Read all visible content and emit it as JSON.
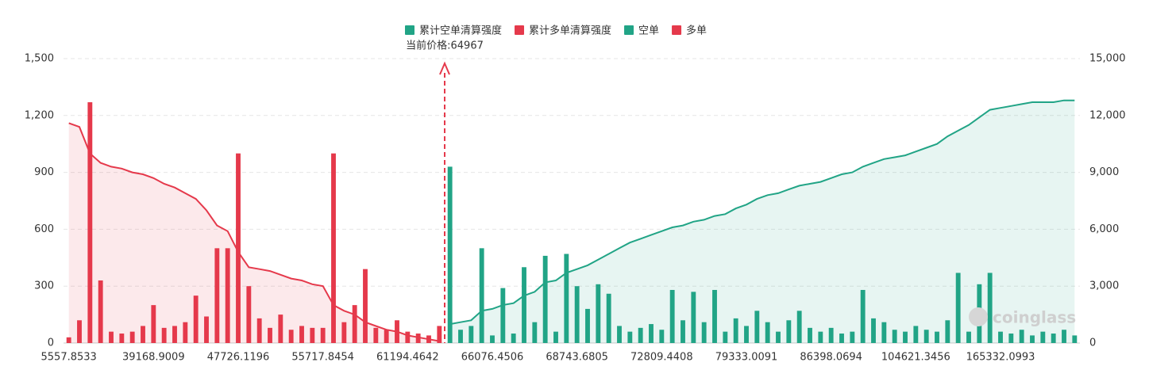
{
  "chart_data": {
    "type": "liquidation-map",
    "categories": [
      "5557.8533",
      null,
      null,
      null,
      null,
      null,
      null,
      null,
      "39168.9009",
      null,
      null,
      null,
      null,
      null,
      null,
      null,
      "47726.1196",
      null,
      null,
      null,
      null,
      null,
      null,
      null,
      "55717.8454",
      null,
      null,
      null,
      null,
      null,
      null,
      null,
      "61194.4642",
      null,
      null,
      null,
      null,
      null,
      null,
      null,
      "66076.4506",
      null,
      null,
      null,
      null,
      null,
      null,
      null,
      "68743.6805",
      null,
      null,
      null,
      null,
      null,
      null,
      null,
      "72809.4408",
      null,
      null,
      null,
      null,
      null,
      null,
      null,
      "79333.0091",
      null,
      null,
      null,
      null,
      null,
      null,
      null,
      "86398.0694",
      null,
      null,
      null,
      null,
      null,
      null,
      null,
      "104621.3456",
      null,
      null,
      null,
      null,
      null,
      null,
      null,
      "165332.0993",
      null,
      null,
      null,
      null,
      null,
      null,
      null
    ],
    "series": [
      {
        "name": "累计空单清算强度",
        "kind": "area",
        "axis": "y2",
        "color": "#21a486",
        "values": [
          null,
          null,
          null,
          null,
          null,
          null,
          null,
          null,
          null,
          null,
          null,
          null,
          null,
          null,
          null,
          null,
          null,
          null,
          null,
          null,
          null,
          null,
          null,
          null,
          null,
          null,
          null,
          null,
          null,
          null,
          null,
          null,
          null,
          null,
          null,
          null,
          1000,
          1100,
          1200,
          1700,
          1800,
          2000,
          2100,
          2500,
          2700,
          3200,
          3300,
          3700,
          3900,
          4100,
          4400,
          4700,
          5000,
          5300,
          5500,
          5700,
          5900,
          6100,
          6200,
          6400,
          6500,
          6700,
          6800,
          7100,
          7300,
          7600,
          7800,
          7900,
          8100,
          8300,
          8400,
          8500,
          8700,
          8900,
          9000,
          9300,
          9500,
          9700,
          9800,
          9900,
          10100,
          10300,
          10500,
          10900,
          11200,
          11500,
          11900,
          12300,
          12400,
          12500,
          12600,
          12700,
          12700,
          12700,
          12800,
          12800
        ]
      },
      {
        "name": "累计多单清算强度",
        "kind": "area",
        "axis": "y2",
        "color": "#e5394b",
        "values": [
          11600,
          11400,
          10000,
          9500,
          9300,
          9200,
          9000,
          8900,
          8700,
          8400,
          8200,
          7900,
          7600,
          7000,
          6200,
          5900,
          4800,
          4000,
          3900,
          3800,
          3600,
          3400,
          3300,
          3100,
          3000,
          2000,
          1700,
          1500,
          1100,
          900,
          700,
          600,
          400,
          300,
          200,
          100,
          null,
          null,
          null,
          null,
          null,
          null,
          null,
          null,
          null,
          null,
          null,
          null,
          null,
          null,
          null,
          null,
          null,
          null,
          null,
          null,
          null,
          null,
          null,
          null,
          null,
          null,
          null,
          null,
          null,
          null,
          null,
          null,
          null,
          null,
          null,
          null,
          null,
          null,
          null,
          null,
          null,
          null,
          null,
          null,
          null,
          null,
          null,
          null,
          null,
          null,
          null,
          null,
          null,
          null,
          null,
          null,
          null,
          null,
          null,
          null
        ]
      },
      {
        "name": "空单",
        "kind": "bar",
        "color": "#21a486",
        "values": [
          null,
          null,
          null,
          null,
          null,
          null,
          null,
          null,
          null,
          null,
          null,
          null,
          null,
          null,
          null,
          null,
          null,
          null,
          null,
          null,
          null,
          null,
          null,
          null,
          null,
          null,
          null,
          null,
          null,
          null,
          null,
          null,
          null,
          null,
          null,
          null,
          930,
          70,
          90,
          500,
          40,
          290,
          50,
          400,
          110,
          460,
          60,
          470,
          300,
          180,
          310,
          260,
          90,
          60,
          80,
          100,
          70,
          280,
          120,
          270,
          110,
          280,
          60,
          130,
          90,
          170,
          110,
          60,
          120,
          170,
          80,
          60,
          80,
          50,
          60,
          280,
          130,
          110,
          70,
          60,
          90,
          70,
          60,
          120,
          370,
          60,
          310,
          370,
          60,
          50,
          70,
          40,
          60,
          50,
          70,
          40
        ]
      },
      {
        "name": "多单",
        "kind": "bar",
        "color": "#e5394b",
        "values": [
          30,
          120,
          1270,
          330,
          60,
          50,
          60,
          90,
          200,
          80,
          90,
          110,
          250,
          140,
          500,
          500,
          1000,
          300,
          130,
          80,
          150,
          70,
          90,
          80,
          80,
          1000,
          110,
          200,
          390,
          80,
          70,
          120,
          60,
          50,
          40,
          90,
          null,
          null,
          null,
          null,
          null,
          null,
          null,
          null,
          null,
          null,
          null,
          null,
          null,
          null,
          null,
          null,
          null,
          null,
          null,
          null,
          null,
          null,
          null,
          null,
          null,
          null,
          null,
          null,
          null,
          null,
          null,
          null,
          null,
          null,
          null,
          null,
          null,
          null,
          null,
          null,
          null,
          null,
          null,
          null,
          null,
          null,
          null,
          null,
          null,
          null,
          null,
          null,
          null,
          null,
          null,
          null,
          null,
          null,
          null,
          null
        ]
      }
    ],
    "current_price_label": "当前价格:64967",
    "watermark": "coinglass",
    "ylim": [
      0,
      1500
    ],
    "yticks": [
      0,
      300,
      600,
      900,
      {
        "value": 1200,
        "label": "1,200"
      },
      {
        "value": 1500,
        "label": "1,500"
      }
    ],
    "y2lim": [
      0,
      15000
    ],
    "y2ticks": [
      0,
      {
        "value": 3000,
        "label": "3,000"
      },
      {
        "value": 6000,
        "label": "6,000"
      },
      {
        "value": 9000,
        "label": "9,000"
      },
      {
        "value": 12000,
        "label": "12,000"
      },
      {
        "value": 15000,
        "label": "15,000"
      }
    ],
    "grid": true,
    "legend": "top"
  }
}
